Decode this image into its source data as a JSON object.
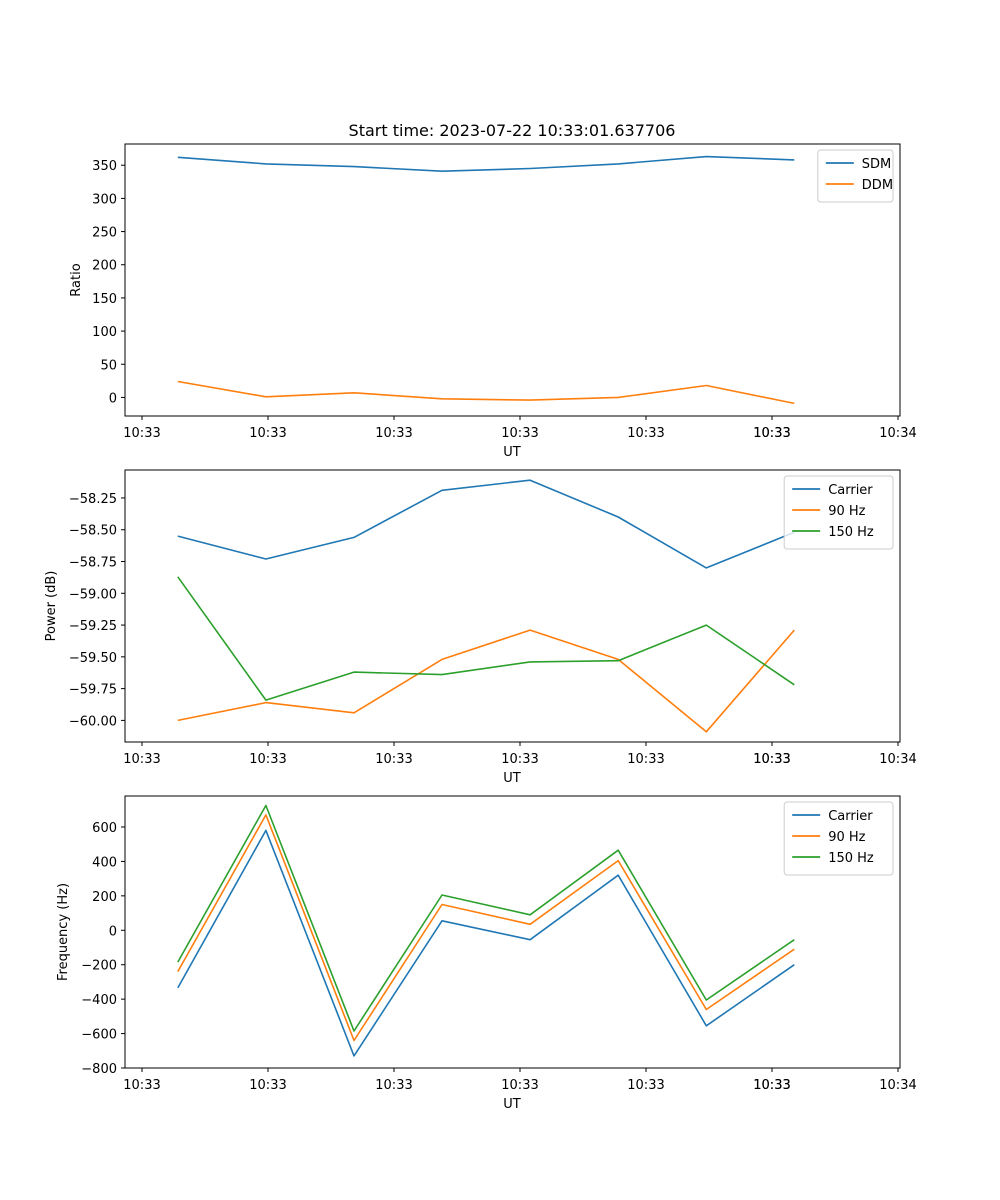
{
  "chart_data": [
    {
      "type": "line",
      "title": "Start time: 2023-07-22 10:33:01.637706",
      "xlabel": "UT",
      "ylabel": "Ratio",
      "x_ticks": [
        "10:33",
        "10:33",
        "10:33",
        "10:33",
        "10:33",
        "10:33",
        "10:33",
        "10:34"
      ],
      "x": [
        1,
        2,
        3,
        4,
        5,
        6,
        7,
        8
      ],
      "xlim": [
        0.4,
        9.2
      ],
      "ylim": [
        -28,
        382
      ],
      "y_ticks": [
        0,
        50,
        100,
        150,
        200,
        250,
        300,
        350
      ],
      "legend_loc": "upper right",
      "series": [
        {
          "name": "SDM",
          "color": "#1f77b4",
          "values": [
            362,
            352,
            348,
            341,
            345,
            352,
            363,
            358
          ]
        },
        {
          "name": "DDM",
          "color": "#ff7f0e",
          "values": [
            24,
            1,
            7,
            -2,
            -4,
            0,
            18,
            -9
          ]
        }
      ]
    },
    {
      "type": "line",
      "title": "",
      "xlabel": "UT",
      "ylabel": "Power (dB)",
      "x_ticks": [
        "10:33",
        "10:33",
        "10:33",
        "10:33",
        "10:33",
        "10:33",
        "10:33",
        "10:34"
      ],
      "x": [
        1,
        2,
        3,
        4,
        5,
        6,
        7,
        8
      ],
      "xlim": [
        0.4,
        9.2
      ],
      "ylim": [
        -60.17,
        -58.03
      ],
      "y_ticks": [
        -60.0,
        -59.75,
        -59.5,
        -59.25,
        -59.0,
        -58.75,
        -58.5,
        -58.25
      ],
      "y_tick_labels": [
        "−60.00",
        "−59.75",
        "−59.50",
        "−59.25",
        "−59.00",
        "−58.75",
        "−58.50",
        "−58.25"
      ],
      "legend_loc": "upper right",
      "series": [
        {
          "name": "Carrier",
          "color": "#1f77b4",
          "values": [
            -58.55,
            -58.73,
            -58.56,
            -58.19,
            -58.11,
            -58.4,
            -58.8,
            -58.52
          ]
        },
        {
          "name": "90 Hz",
          "color": "#ff7f0e",
          "values": [
            -60.0,
            -59.86,
            -59.94,
            -59.52,
            -59.29,
            -59.52,
            -60.09,
            -59.29
          ]
        },
        {
          "name": "150 Hz",
          "color": "#2ca02c",
          "values": [
            -58.87,
            -59.84,
            -59.62,
            -59.64,
            -59.54,
            -59.53,
            -59.25,
            -59.72
          ]
        }
      ]
    },
    {
      "type": "line",
      "title": "",
      "xlabel": "UT",
      "ylabel": "Frequency (Hz)",
      "x_ticks": [
        "10:33",
        "10:33",
        "10:33",
        "10:33",
        "10:33",
        "10:33",
        "10:33",
        "10:34"
      ],
      "x": [
        1,
        2,
        3,
        4,
        5,
        6,
        7,
        8
      ],
      "xlim": [
        0.4,
        9.2
      ],
      "ylim": [
        -800,
        780
      ],
      "y_ticks": [
        -800,
        -600,
        -400,
        -200,
        0,
        200,
        400,
        600
      ],
      "y_tick_labels": [
        "−800",
        "−600",
        "−400",
        "−200",
        "0",
        "200",
        "400",
        "600"
      ],
      "legend_loc": "upper right",
      "series": [
        {
          "name": "Carrier",
          "color": "#1f77b4",
          "values": [
            -335,
            580,
            -730,
            55,
            -55,
            320,
            -555,
            -200
          ]
        },
        {
          "name": "90 Hz",
          "color": "#ff7f0e",
          "values": [
            -240,
            670,
            -640,
            150,
            35,
            405,
            -460,
            -110
          ]
        },
        {
          "name": "150 Hz",
          "color": "#2ca02c",
          "values": [
            -185,
            725,
            -585,
            205,
            90,
            465,
            -405,
            -55
          ]
        }
      ]
    }
  ]
}
